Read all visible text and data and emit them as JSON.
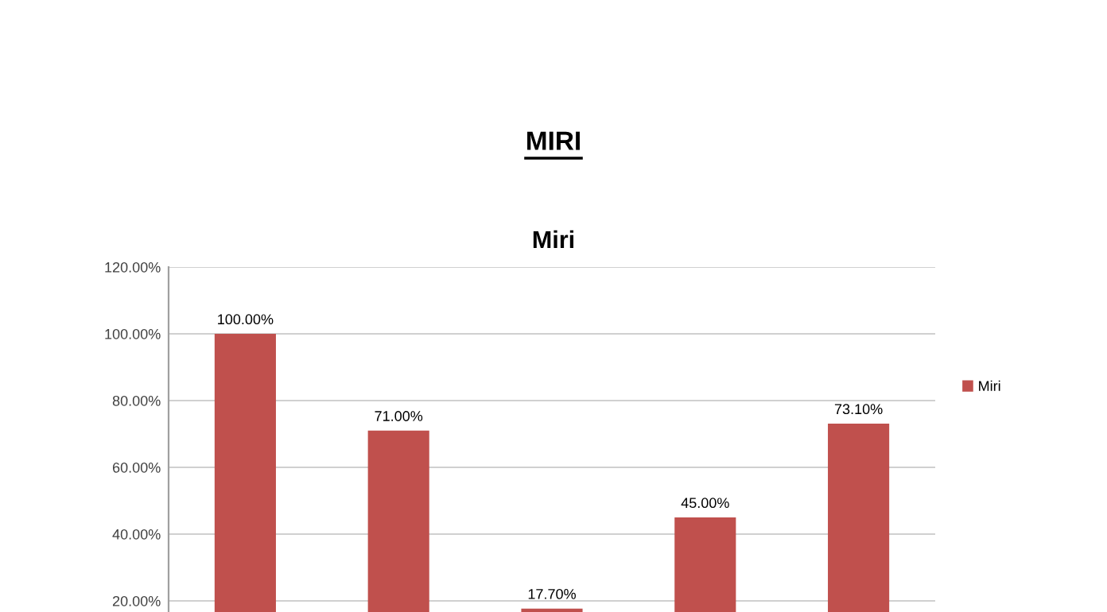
{
  "chart_data": {
    "type": "bar",
    "title": "MIRI",
    "subtitle": "Miri",
    "categories": [
      null,
      null,
      null,
      null,
      null
    ],
    "series": [
      {
        "name": "Miri",
        "color": "#c0504d",
        "values": [
          100.0,
          71.0,
          17.7,
          45.0,
          73.1
        ]
      }
    ],
    "value_labels": [
      "100.00%",
      "71.00%",
      "17.70%",
      "45.00%",
      "73.10%"
    ],
    "ylim": [
      0,
      120
    ],
    "yticks": [
      {
        "value": 20,
        "label": "20.00%"
      },
      {
        "value": 40,
        "label": "40.00%"
      },
      {
        "value": 60,
        "label": "60.00%"
      },
      {
        "value": 80,
        "label": "80.00%"
      },
      {
        "value": 100,
        "label": "100.00%"
      },
      {
        "value": 120,
        "label": "120.00%"
      }
    ],
    "grid": "y",
    "legend": "right",
    "tick_labels": "y"
  }
}
